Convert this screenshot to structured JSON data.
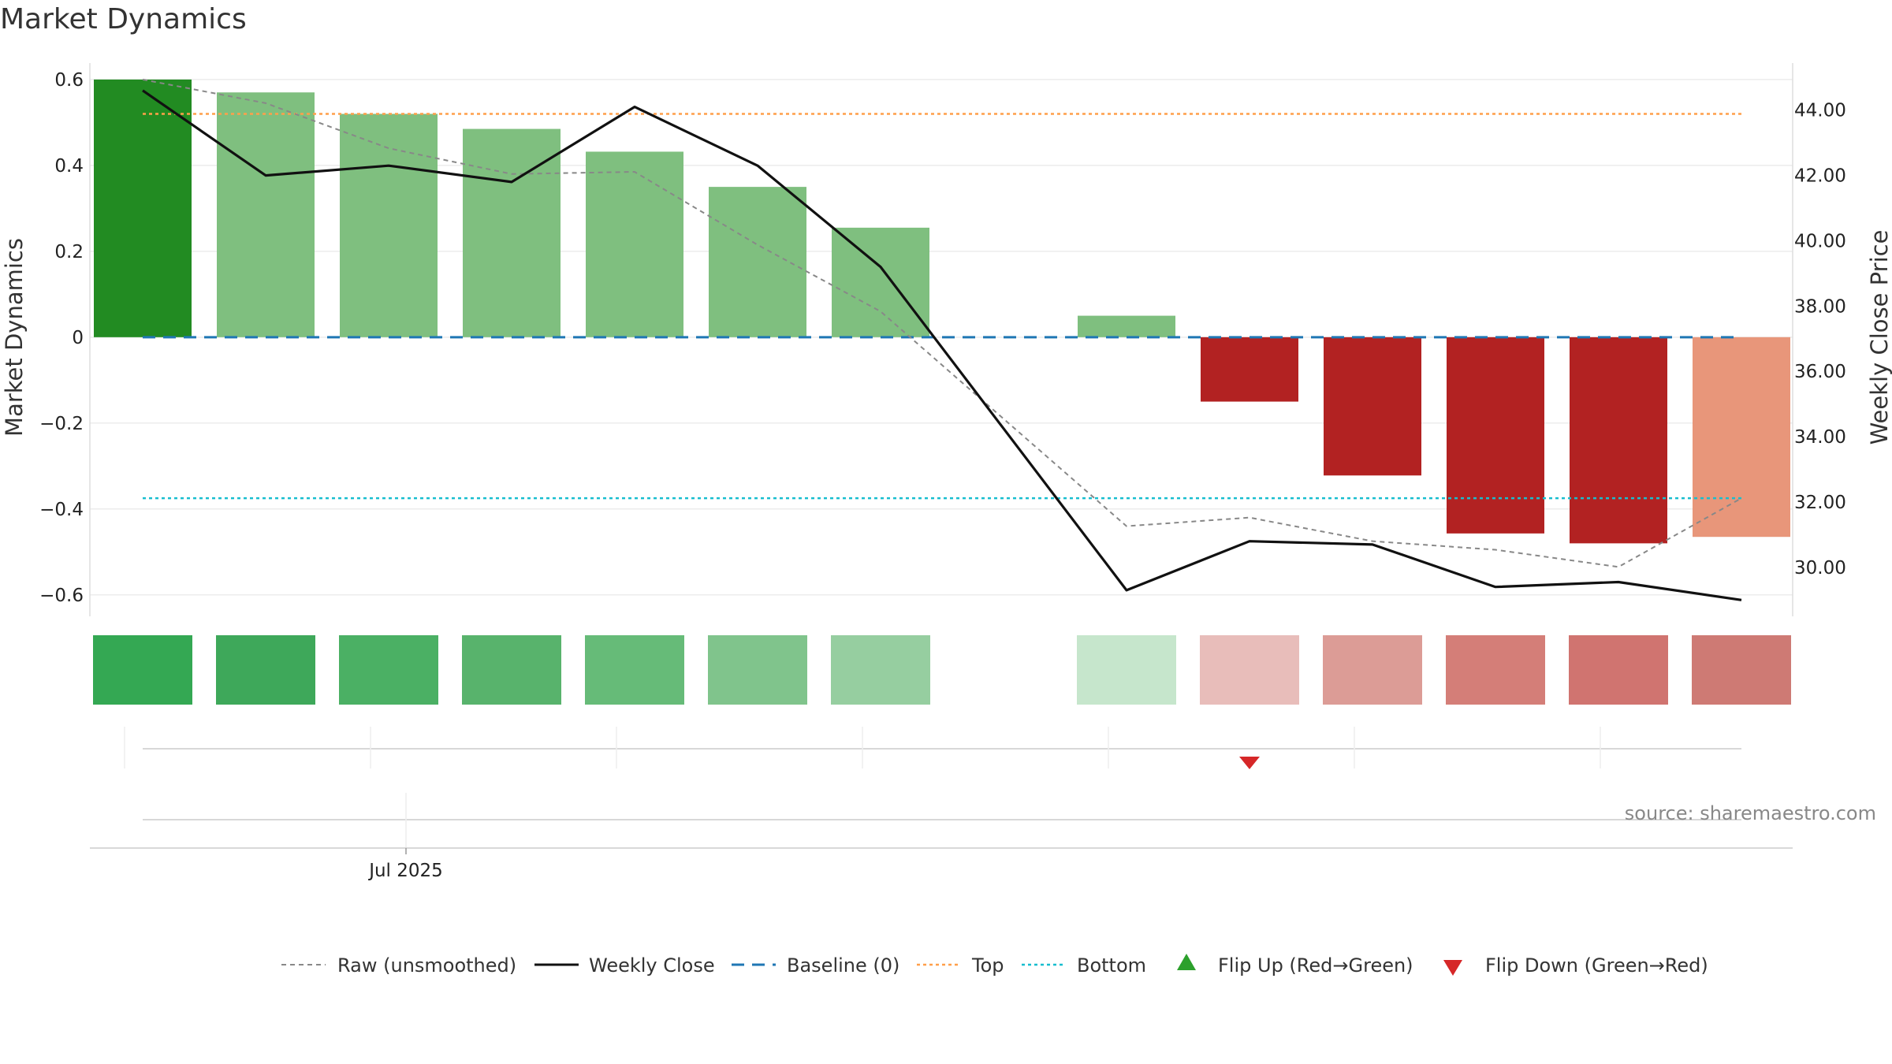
{
  "chart_data": {
    "type": "bar",
    "title": "Market Dynamics",
    "ylabel_left": "Market Dynamics",
    "ylabel_right": "Weekly Close Price",
    "ylim_left": [
      -0.65,
      0.62
    ],
    "ylim_right": [
      28.5,
      45.2
    ],
    "left_ticks": [
      0.6,
      0.4,
      0.2,
      0,
      -0.2,
      -0.4,
      -0.6
    ],
    "left_tick_labels": [
      "0.6",
      "0.4",
      "0.2",
      "0",
      "−0.2",
      "−0.4",
      "−0.6"
    ],
    "right_ticks": [
      44,
      42,
      40,
      38,
      36,
      34,
      32,
      30
    ],
    "right_tick_labels": [
      "44.00",
      "42.00",
      "40.00",
      "38.00",
      "36.00",
      "34.00",
      "32.00",
      "30.00"
    ],
    "x_tick_label": "Jul 2025",
    "n_weeks": 14,
    "bars": [
      0.6,
      0.57,
      0.52,
      0.485,
      0.432,
      0.35,
      0.255,
      null,
      0.05,
      -0.15,
      -0.322,
      -0.457,
      -0.48,
      -0.465
    ],
    "bar_colors": [
      "#228b22",
      "#7fbf7f",
      "#7fbf7f",
      "#7fbf7f",
      "#7fbf7f",
      "#7fbf7f",
      "#7fbf7f",
      null,
      "#7fbf7f",
      "#b22222",
      "#b22222",
      "#b22222",
      "#b22222",
      "#e8967a"
    ],
    "raw_unsmoothed": [
      0.6,
      0.545,
      0.44,
      0.38,
      0.385,
      0.215,
      0.06,
      null,
      -0.44,
      -0.42,
      -0.475,
      -0.495,
      -0.535,
      -0.375
    ],
    "weekly_close": [
      44.6,
      42.0,
      42.3,
      41.8,
      44.1,
      42.3,
      39.2,
      null,
      29.3,
      30.8,
      30.7,
      29.4,
      29.55,
      29.0
    ],
    "baseline": 0,
    "top": 0.52,
    "bottom": -0.375,
    "strip_colors": [
      "#34a853",
      "#3ea85a",
      "#4bb064",
      "#58b36c",
      "#66bb78",
      "#80c48c",
      "#96cea0",
      null,
      "#c6e6cc",
      "#e8bdba",
      "#dc9c96",
      "#d47e78",
      "#d07470",
      "#ce7a74"
    ],
    "flip_down_week": 9,
    "flip_up_week": null,
    "colors": {
      "raw": "#888888",
      "close": "#111111",
      "baseline": "#1f77b4",
      "top": "#ff9f4a",
      "bottom": "#17becf",
      "flip_up": "#2ca02c",
      "flip_down": "#d62728"
    }
  },
  "legend": {
    "raw": "Raw (unsmoothed)",
    "close": "Weekly Close",
    "baseline": "Baseline (0)",
    "top": "Top",
    "bottom": "Bottom",
    "flip_up": "Flip Up (Red→Green)",
    "flip_down": "Flip Down (Green→Red)"
  },
  "source": "source: sharemaestro.com"
}
